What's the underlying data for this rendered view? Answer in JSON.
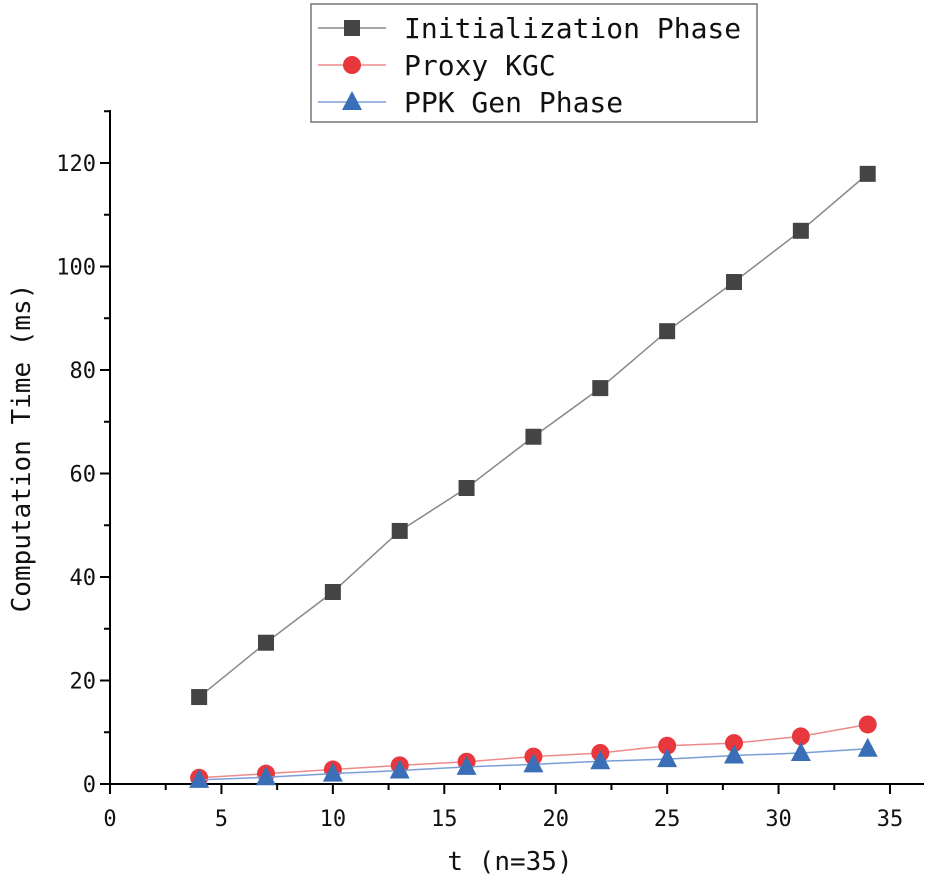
{
  "chart_data": {
    "type": "line",
    "title": "",
    "xlabel": "t (n=35)",
    "ylabel": "Computation Time (ms)",
    "xlim": [
      0,
      36.5
    ],
    "ylim": [
      0,
      130
    ],
    "xticks": [
      0,
      5,
      10,
      15,
      20,
      25,
      30,
      35
    ],
    "yticks": [
      0,
      20,
      40,
      60,
      80,
      100,
      120
    ],
    "grid": false,
    "legend_position": "top-center",
    "x": [
      4,
      7,
      10,
      13,
      16,
      19,
      22,
      25,
      28,
      31,
      34
    ],
    "series": [
      {
        "name": "Initialization Phase",
        "marker": "square",
        "color": "#444444",
        "line_color": "#888888",
        "values": [
          16.8,
          27.3,
          37.1,
          48.9,
          57.2,
          67.1,
          76.5,
          87.5,
          97.0,
          106.9,
          117.9
        ]
      },
      {
        "name": "Proxy KGC",
        "marker": "circle",
        "color": "#e8383d",
        "line_color": "#f08a8a",
        "values": [
          1.2,
          2.0,
          2.8,
          3.6,
          4.3,
          5.3,
          6.0,
          7.4,
          7.9,
          9.2,
          11.5
        ]
      },
      {
        "name": "PPK Gen Phase",
        "marker": "triangle",
        "color": "#3a6fb8",
        "line_color": "#7a9fd8",
        "values": [
          0.8,
          1.3,
          2.0,
          2.6,
          3.3,
          3.8,
          4.4,
          4.8,
          5.5,
          6.0,
          6.8
        ]
      }
    ]
  }
}
